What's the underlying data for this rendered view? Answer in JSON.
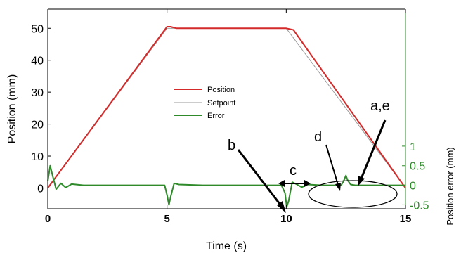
{
  "chart_data": {
    "type": "line",
    "xlabel": "Time (s)",
    "ylabel": "Position (mm)",
    "y2label": "Position error (mm)",
    "x_ticks": [
      "0",
      "5",
      "10",
      "15"
    ],
    "y_ticks": [
      "0",
      "10",
      "20",
      "30",
      "40",
      "50"
    ],
    "y2_ticks": [
      "1",
      "0.5",
      "0",
      "-0.5"
    ],
    "xlim": [
      0,
      15
    ],
    "ylim": [
      -6.5,
      56
    ],
    "y2lim": [
      -0.6,
      4.5
    ],
    "grid": false,
    "legend_position": "center",
    "series": [
      {
        "name": "Position",
        "axis": "left",
        "color": "#d42a2a",
        "x": [
          0,
          5,
          5.15,
          5.4,
          10,
          10.3,
          15
        ],
        "y": [
          0,
          50.5,
          50.5,
          50,
          50,
          49.5,
          0
        ]
      },
      {
        "name": "Setpoint",
        "axis": "left",
        "color": "#9a9a9a",
        "x": [
          0,
          5,
          10,
          15
        ],
        "y": [
          0,
          50,
          50,
          0
        ]
      },
      {
        "name": "Error",
        "axis": "right",
        "color": "#2f8a2a",
        "x": [
          0,
          0.1,
          0.2,
          0.35,
          0.55,
          0.75,
          1.0,
          1.5,
          4.9,
          5.0,
          5.08,
          5.15,
          5.3,
          5.5,
          6.5,
          9.8,
          9.95,
          10.02,
          10.1,
          10.25,
          10.45,
          10.65,
          10.9,
          11.5,
          12.3,
          12.4,
          12.5,
          12.58,
          12.7,
          12.9,
          15
        ],
        "y": [
          0.1,
          0.5,
          0.25,
          -0.1,
          0.05,
          -0.06,
          0.03,
          0,
          0,
          -0.25,
          -0.5,
          -0.3,
          0.05,
          0.02,
          0,
          0,
          -0.2,
          -0.55,
          -0.4,
          0.08,
          0.02,
          -0.05,
          0.02,
          0,
          0,
          0.1,
          0.25,
          0.12,
          0.02,
          0,
          0
        ]
      }
    ],
    "annotations": [
      "a,e",
      "b",
      "c",
      "d"
    ]
  }
}
